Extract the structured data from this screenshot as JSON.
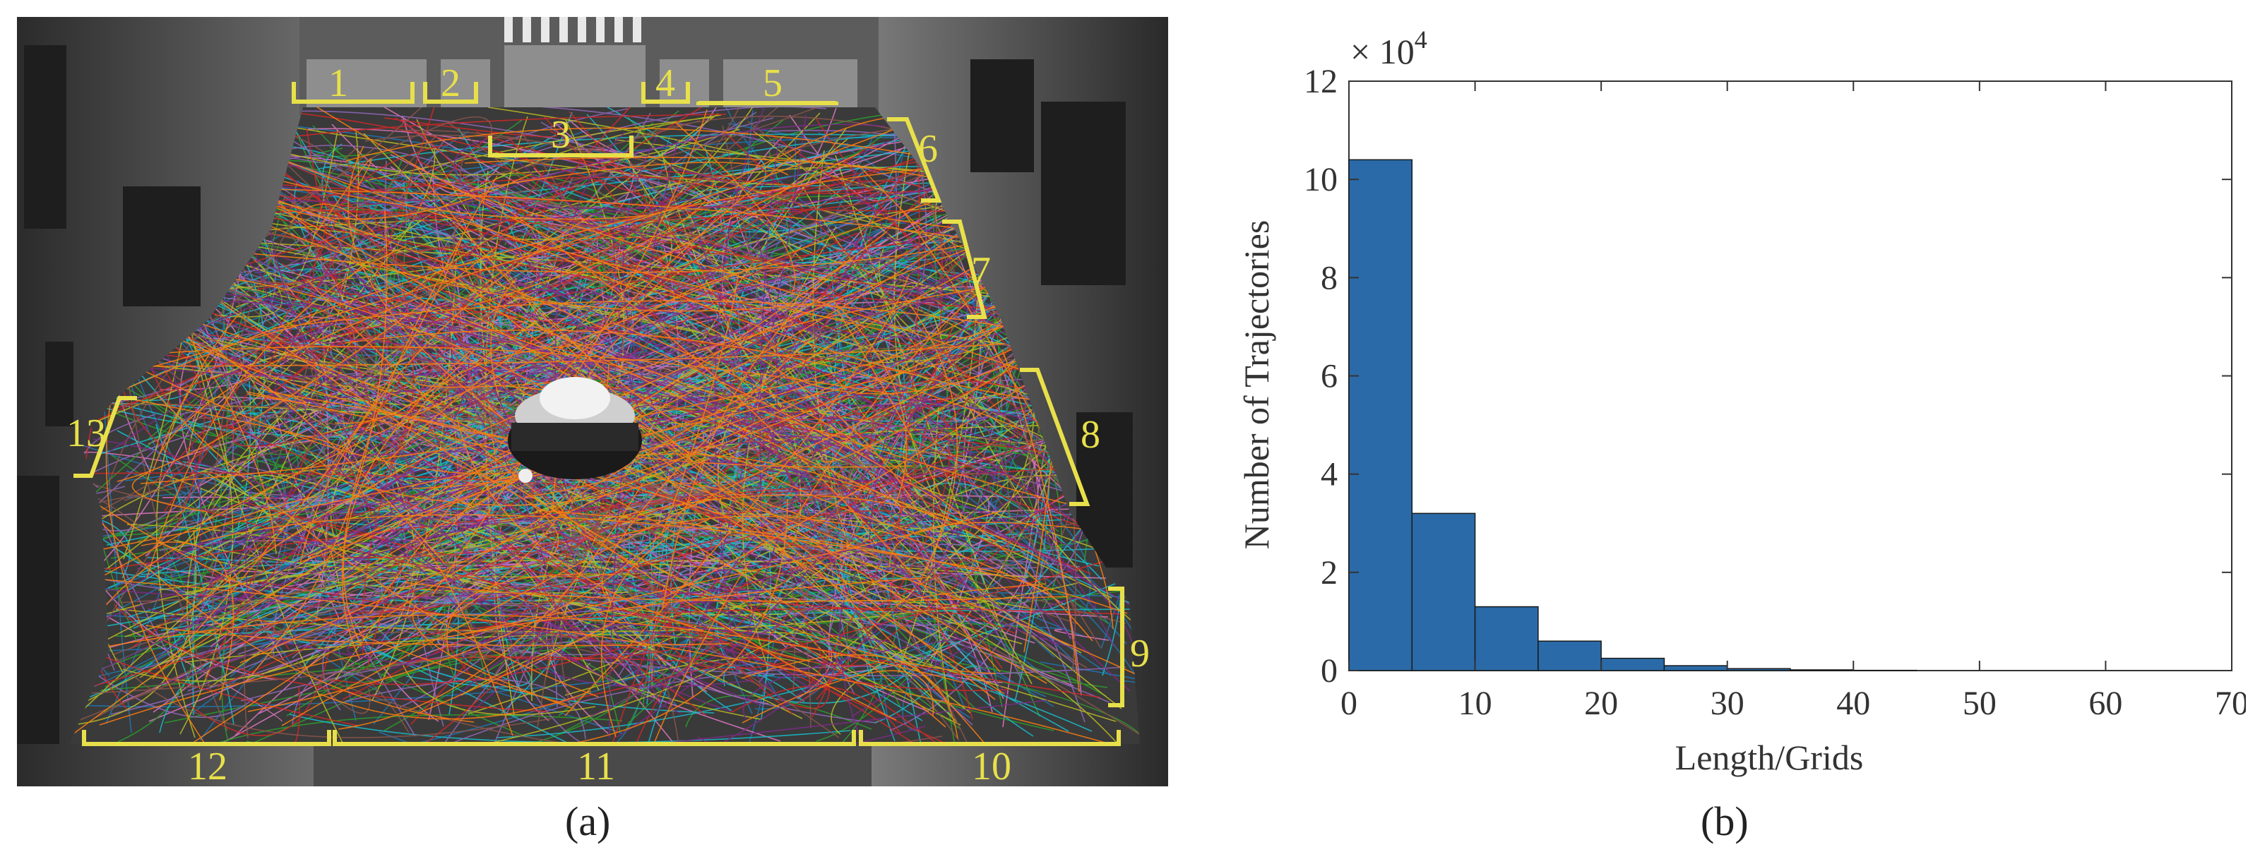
{
  "panels": {
    "a": {
      "caption": "(a)",
      "colors": {
        "label": "#e8e04a",
        "floor_dark": "#3a3a3a"
      },
      "entrance_labels": [
        "1",
        "2",
        "3",
        "4",
        "5",
        "6",
        "7",
        "8",
        "9",
        "10",
        "11",
        "12",
        "13"
      ]
    },
    "b": {
      "caption": "(b)"
    }
  },
  "chart_data": {
    "type": "bar",
    "subtype": "histogram",
    "title": "",
    "xlabel": "Length/Grids",
    "ylabel": "Number of Trajectories",
    "y_multiplier": "× 10",
    "y_multiplier_exp": "4",
    "xlim": [
      0,
      70
    ],
    "ylim": [
      0,
      12
    ],
    "xticks": [
      0,
      10,
      20,
      30,
      40,
      50,
      60,
      70
    ],
    "yticks": [
      0,
      2,
      4,
      6,
      8,
      10,
      12
    ],
    "bin_width": 5,
    "bins": [
      {
        "start": 0,
        "end": 5,
        "value": 10.4
      },
      {
        "start": 5,
        "end": 10,
        "value": 3.2
      },
      {
        "start": 10,
        "end": 15,
        "value": 1.3
      },
      {
        "start": 15,
        "end": 20,
        "value": 0.6
      },
      {
        "start": 20,
        "end": 25,
        "value": 0.25
      },
      {
        "start": 25,
        "end": 30,
        "value": 0.1
      },
      {
        "start": 30,
        "end": 35,
        "value": 0.04
      },
      {
        "start": 35,
        "end": 40,
        "value": 0.015
      },
      {
        "start": 40,
        "end": 45,
        "value": 0.005
      }
    ],
    "bar_color": "#2a6aa8",
    "grid": false
  }
}
